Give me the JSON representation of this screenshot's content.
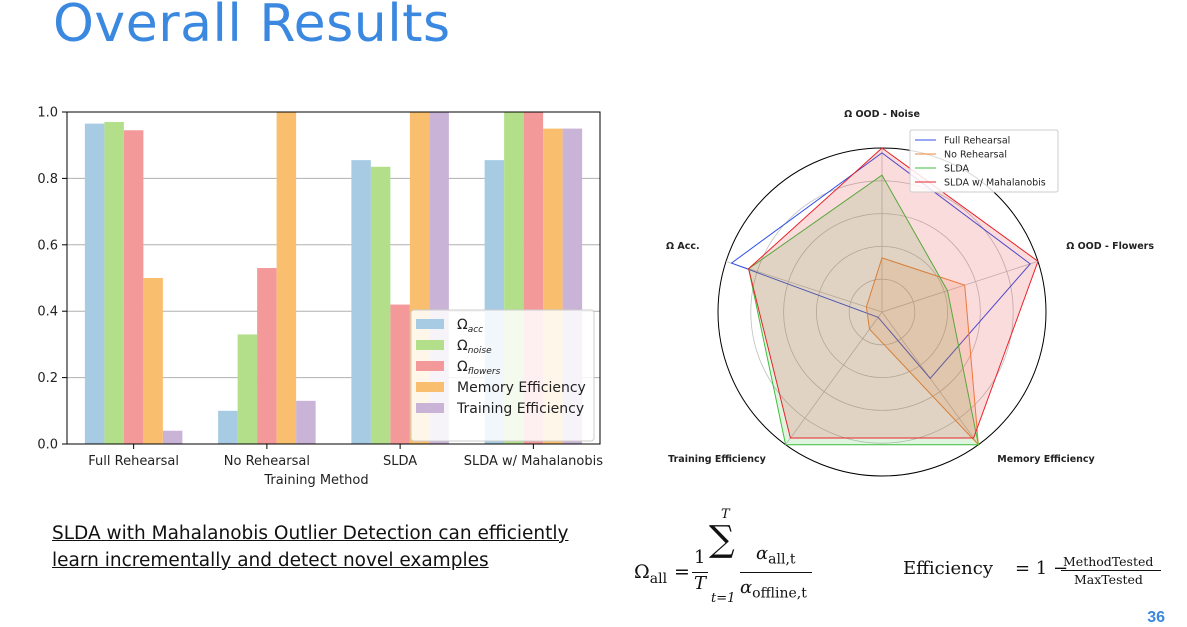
{
  "slide": {
    "title": "Overall Results",
    "caption": "SLDA with Mahalanobis Outlier Detection can efficiently learn incrementally and detect novel examples",
    "page_number": "36",
    "colors": {
      "accent": "#3a88e0"
    }
  },
  "formulas": {
    "omega_all": {
      "lhs": "Ω",
      "lhs_sub": "all",
      "eq": "=",
      "frac_num": "1",
      "frac_den": "T",
      "sum": "∑",
      "sum_upper": "T",
      "sum_lower": "t=1",
      "num": "α",
      "num_sub": "all,t",
      "den": "α",
      "den_sub": "offline,t"
    },
    "efficiency": {
      "lhs": "Efficiency",
      "eq": "= 1 −",
      "num": "MethodTested",
      "den": "MaxTested"
    }
  },
  "chart_data": [
    {
      "type": "bar",
      "title": "",
      "xlabel": "Training Method",
      "ylabel": "",
      "ylim": [
        0,
        1.0
      ],
      "yticks": [
        "0.0",
        "0.2",
        "0.4",
        "0.6",
        "0.8",
        "1.0"
      ],
      "grid": "horizontal",
      "legend_position": "lower-right",
      "categories": [
        "Full Rehearsal",
        "No Rehearsal",
        "SLDA",
        "SLDA w/ Mahalanobis"
      ],
      "series": [
        {
          "name": "Ω",
          "sub": "acc",
          "color": "#a6cbe3",
          "values": [
            0.965,
            0.1,
            0.855,
            0.855
          ]
        },
        {
          "name": "Ω",
          "sub": "noise",
          "color": "#b3df8a",
          "values": [
            0.97,
            0.33,
            0.835,
            1.0
          ]
        },
        {
          "name": "Ω",
          "sub": "flowers",
          "color": "#f3999a",
          "values": [
            0.945,
            0.53,
            0.42,
            1.0
          ]
        },
        {
          "name": "Memory Efficiency",
          "sub": "",
          "color": "#f9bf6e",
          "values": [
            0.5,
            1.0,
            1.0,
            0.95
          ]
        },
        {
          "name": "Training Efficiency",
          "sub": "",
          "color": "#c9b3d6",
          "values": [
            0.04,
            0.13,
            1.0,
            0.95
          ]
        }
      ]
    },
    {
      "type": "radar",
      "axes": [
        "Ω OOD - Noise",
        "Ω OOD - Flowers",
        "Memory Efficiency",
        "Training Efficiency",
        "Ω Acc."
      ],
      "rmax": 1.0,
      "grid": true,
      "legend_position": "top-right",
      "series": [
        {
          "name": "Full Rehearsal",
          "color": "#3050e6",
          "fill": false,
          "values": [
            0.97,
            0.95,
            0.5,
            0.04,
            0.965
          ]
        },
        {
          "name": "No Rehearsal",
          "color": "#f0883c",
          "fill": true,
          "values": [
            0.33,
            0.53,
            1.0,
            0.13,
            0.1
          ]
        },
        {
          "name": "SLDA",
          "color": "#3fbf3f",
          "fill": true,
          "values": [
            0.835,
            0.42,
            1.0,
            1.0,
            0.855
          ]
        },
        {
          "name": "SLDA w/ Mahalanobis",
          "color": "#e8232a",
          "fill": true,
          "values": [
            1.0,
            1.0,
            0.95,
            0.95,
            0.855
          ]
        }
      ]
    }
  ]
}
